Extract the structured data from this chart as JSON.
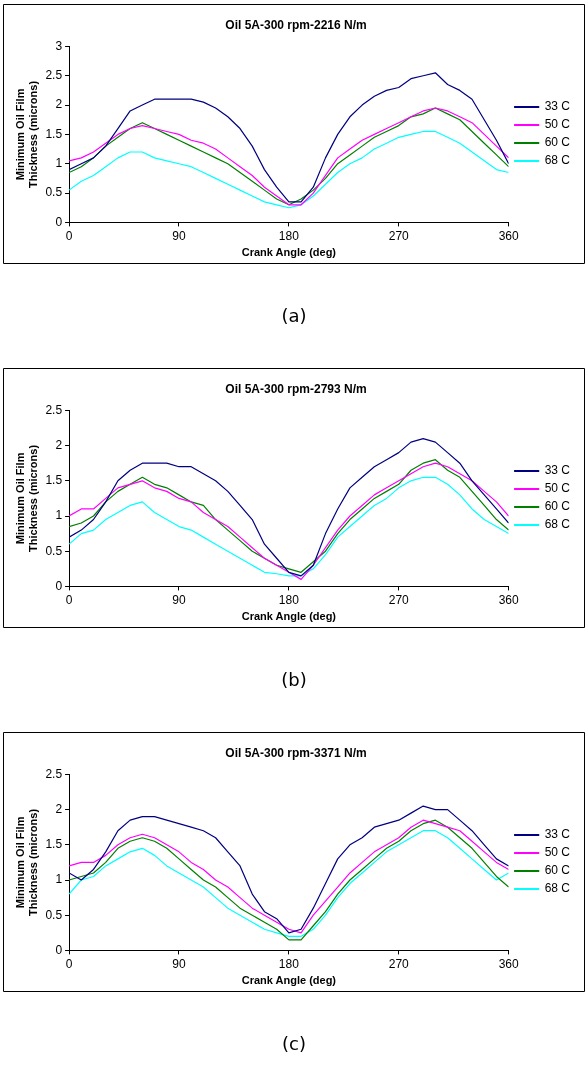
{
  "chart_data": [
    {
      "type": "line",
      "title": "Oil 5A-300 rpm-2216 N/m",
      "xlabel": "Crank Angle (deg)",
      "ylabel": "Minimum Oil Film Thickness (microns)",
      "annotations": [
        "(a)"
      ],
      "legend": "right",
      "xlim": [
        0,
        360
      ],
      "xticks": [
        0,
        90,
        180,
        270,
        360
      ],
      "ylim": [
        0,
        3
      ],
      "yticks": [
        0,
        0.5,
        1,
        1.5,
        2,
        2.5,
        3
      ],
      "x": [
        0,
        10,
        20,
        30,
        40,
        50,
        60,
        70,
        80,
        90,
        100,
        110,
        120,
        130,
        140,
        150,
        160,
        170,
        180,
        190,
        200,
        210,
        220,
        230,
        240,
        250,
        260,
        270,
        280,
        290,
        300,
        310,
        320,
        330,
        340,
        350,
        360
      ],
      "series": [
        {
          "name": "33 C",
          "color": "#000080",
          "values": [
            0.9,
            1.0,
            1.1,
            1.3,
            1.6,
            1.9,
            2.0,
            2.1,
            2.1,
            2.1,
            2.1,
            2.05,
            1.95,
            1.8,
            1.6,
            1.3,
            0.9,
            0.6,
            0.35,
            0.35,
            0.6,
            1.1,
            1.5,
            1.8,
            2.0,
            2.15,
            2.25,
            2.3,
            2.45,
            2.5,
            2.55,
            2.35,
            2.25,
            2.1,
            1.75,
            1.4,
            1.0
          ]
        },
        {
          "name": "50 C",
          "color": "#ff00ff",
          "values": [
            1.05,
            1.1,
            1.2,
            1.35,
            1.5,
            1.6,
            1.65,
            1.6,
            1.55,
            1.5,
            1.4,
            1.35,
            1.25,
            1.1,
            0.95,
            0.8,
            0.6,
            0.45,
            0.3,
            0.3,
            0.5,
            0.8,
            1.1,
            1.25,
            1.4,
            1.5,
            1.6,
            1.7,
            1.8,
            1.9,
            1.95,
            1.9,
            1.8,
            1.7,
            1.5,
            1.3,
            1.1
          ]
        },
        {
          "name": "60 C",
          "color": "#008000",
          "values": [
            0.85,
            0.95,
            1.1,
            1.3,
            1.45,
            1.6,
            1.7,
            1.6,
            1.5,
            1.4,
            1.3,
            1.2,
            1.1,
            1.0,
            0.85,
            0.7,
            0.55,
            0.4,
            0.3,
            0.4,
            0.55,
            0.75,
            1.0,
            1.15,
            1.3,
            1.45,
            1.55,
            1.65,
            1.8,
            1.85,
            1.95,
            1.85,
            1.75,
            1.55,
            1.35,
            1.15,
            0.95
          ]
        },
        {
          "name": "68 C",
          "color": "#00ffff",
          "values": [
            0.55,
            0.7,
            0.8,
            0.95,
            1.1,
            1.2,
            1.2,
            1.1,
            1.05,
            1.0,
            0.95,
            0.85,
            0.75,
            0.65,
            0.55,
            0.45,
            0.35,
            0.3,
            0.25,
            0.3,
            0.45,
            0.65,
            0.85,
            1.0,
            1.1,
            1.25,
            1.35,
            1.45,
            1.5,
            1.55,
            1.55,
            1.45,
            1.35,
            1.2,
            1.05,
            0.9,
            0.85
          ]
        }
      ]
    },
    {
      "type": "line",
      "title": "Oil 5A-300 rpm-2793 N/m",
      "xlabel": "Crank Angle (deg)",
      "ylabel": "Minimum Oil Film Thickness (microns)",
      "annotations": [
        "(b)"
      ],
      "legend": "right",
      "xlim": [
        0,
        360
      ],
      "xticks": [
        0,
        90,
        180,
        270,
        360
      ],
      "ylim": [
        0,
        2.5
      ],
      "yticks": [
        0,
        0.5,
        1,
        1.5,
        2,
        2.5
      ],
      "x": [
        0,
        10,
        20,
        30,
        40,
        50,
        60,
        70,
        80,
        90,
        100,
        110,
        120,
        130,
        140,
        150,
        160,
        170,
        180,
        190,
        200,
        210,
        220,
        230,
        240,
        250,
        260,
        270,
        280,
        290,
        300,
        310,
        320,
        330,
        340,
        350,
        360
      ],
      "series": [
        {
          "name": "33 C",
          "color": "#000080",
          "values": [
            0.7,
            0.8,
            0.95,
            1.2,
            1.5,
            1.65,
            1.75,
            1.75,
            1.75,
            1.7,
            1.7,
            1.6,
            1.5,
            1.35,
            1.15,
            0.95,
            0.6,
            0.4,
            0.2,
            0.15,
            0.3,
            0.75,
            1.1,
            1.4,
            1.55,
            1.7,
            1.8,
            1.9,
            2.05,
            2.1,
            2.05,
            1.9,
            1.75,
            1.5,
            1.3,
            1.1,
            0.9
          ]
        },
        {
          "name": "50 C",
          "color": "#ff00ff",
          "values": [
            1.0,
            1.1,
            1.1,
            1.25,
            1.4,
            1.45,
            1.5,
            1.4,
            1.35,
            1.25,
            1.2,
            1.05,
            0.95,
            0.85,
            0.7,
            0.55,
            0.4,
            0.3,
            0.2,
            0.1,
            0.3,
            0.55,
            0.8,
            1.0,
            1.15,
            1.3,
            1.4,
            1.5,
            1.6,
            1.7,
            1.75,
            1.7,
            1.6,
            1.5,
            1.35,
            1.2,
            1.0
          ]
        },
        {
          "name": "60 C",
          "color": "#008000",
          "values": [
            0.85,
            0.9,
            1.0,
            1.2,
            1.35,
            1.45,
            1.55,
            1.45,
            1.4,
            1.3,
            1.2,
            1.15,
            0.95,
            0.8,
            0.65,
            0.5,
            0.4,
            0.3,
            0.25,
            0.2,
            0.35,
            0.5,
            0.75,
            0.95,
            1.1,
            1.25,
            1.35,
            1.45,
            1.65,
            1.75,
            1.8,
            1.65,
            1.55,
            1.35,
            1.15,
            0.95,
            0.8
          ]
        },
        {
          "name": "68 C",
          "color": "#00ffff",
          "values": [
            0.6,
            0.75,
            0.8,
            0.95,
            1.05,
            1.15,
            1.2,
            1.05,
            0.95,
            0.85,
            0.8,
            0.7,
            0.6,
            0.5,
            0.4,
            0.3,
            0.2,
            0.18,
            0.15,
            0.15,
            0.25,
            0.45,
            0.7,
            0.85,
            1.0,
            1.15,
            1.25,
            1.4,
            1.5,
            1.55,
            1.55,
            1.45,
            1.3,
            1.1,
            0.95,
            0.85,
            0.75
          ]
        }
      ]
    },
    {
      "type": "line",
      "title": "Oil 5A-300 rpm-3371 N/m",
      "xlabel": "Crank Angle (deg)",
      "ylabel": "Minimum Oil Film Thickness (microns)",
      "annotations": [
        "(c)"
      ],
      "legend": "right",
      "xlim": [
        0,
        360
      ],
      "xticks": [
        0,
        90,
        180,
        270,
        360
      ],
      "ylim": [
        0,
        2.5
      ],
      "yticks": [
        0,
        0.5,
        1,
        1.5,
        2,
        2.5
      ],
      "x": [
        0,
        10,
        20,
        30,
        40,
        50,
        60,
        70,
        80,
        90,
        100,
        110,
        120,
        130,
        140,
        150,
        160,
        170,
        180,
        190,
        200,
        210,
        220,
        230,
        240,
        250,
        260,
        270,
        280,
        290,
        300,
        310,
        320,
        330,
        340,
        350,
        360
      ],
      "series": [
        {
          "name": "33 C",
          "color": "#000080",
          "values": [
            1.1,
            1.0,
            1.15,
            1.4,
            1.7,
            1.85,
            1.9,
            1.9,
            1.85,
            1.8,
            1.75,
            1.7,
            1.6,
            1.4,
            1.2,
            0.8,
            0.55,
            0.45,
            0.25,
            0.3,
            0.6,
            0.95,
            1.3,
            1.5,
            1.6,
            1.75,
            1.8,
            1.85,
            1.95,
            2.05,
            2.0,
            2.0,
            1.85,
            1.7,
            1.5,
            1.3,
            1.2
          ]
        },
        {
          "name": "50 C",
          "color": "#ff00ff",
          "values": [
            1.2,
            1.25,
            1.25,
            1.35,
            1.5,
            1.6,
            1.65,
            1.6,
            1.5,
            1.4,
            1.25,
            1.15,
            1.0,
            0.9,
            0.75,
            0.6,
            0.5,
            0.4,
            0.3,
            0.25,
            0.5,
            0.7,
            0.9,
            1.1,
            1.25,
            1.4,
            1.5,
            1.6,
            1.75,
            1.85,
            1.8,
            1.75,
            1.7,
            1.55,
            1.4,
            1.25,
            1.15
          ]
        },
        {
          "name": "60 C",
          "color": "#008000",
          "values": [
            1.0,
            1.05,
            1.1,
            1.25,
            1.45,
            1.55,
            1.6,
            1.55,
            1.45,
            1.3,
            1.15,
            1.0,
            0.9,
            0.75,
            0.6,
            0.5,
            0.4,
            0.3,
            0.15,
            0.15,
            0.35,
            0.55,
            0.8,
            1.0,
            1.15,
            1.3,
            1.45,
            1.55,
            1.7,
            1.8,
            1.85,
            1.75,
            1.6,
            1.45,
            1.25,
            1.05,
            0.9
          ]
        },
        {
          "name": "68 C",
          "color": "#00ffff",
          "values": [
            0.8,
            1.0,
            1.05,
            1.2,
            1.3,
            1.4,
            1.45,
            1.35,
            1.2,
            1.1,
            1.0,
            0.9,
            0.75,
            0.6,
            0.5,
            0.4,
            0.3,
            0.25,
            0.2,
            0.2,
            0.3,
            0.5,
            0.75,
            0.95,
            1.1,
            1.25,
            1.4,
            1.5,
            1.6,
            1.7,
            1.7,
            1.6,
            1.45,
            1.3,
            1.15,
            1.0,
            1.1
          ]
        }
      ]
    }
  ]
}
